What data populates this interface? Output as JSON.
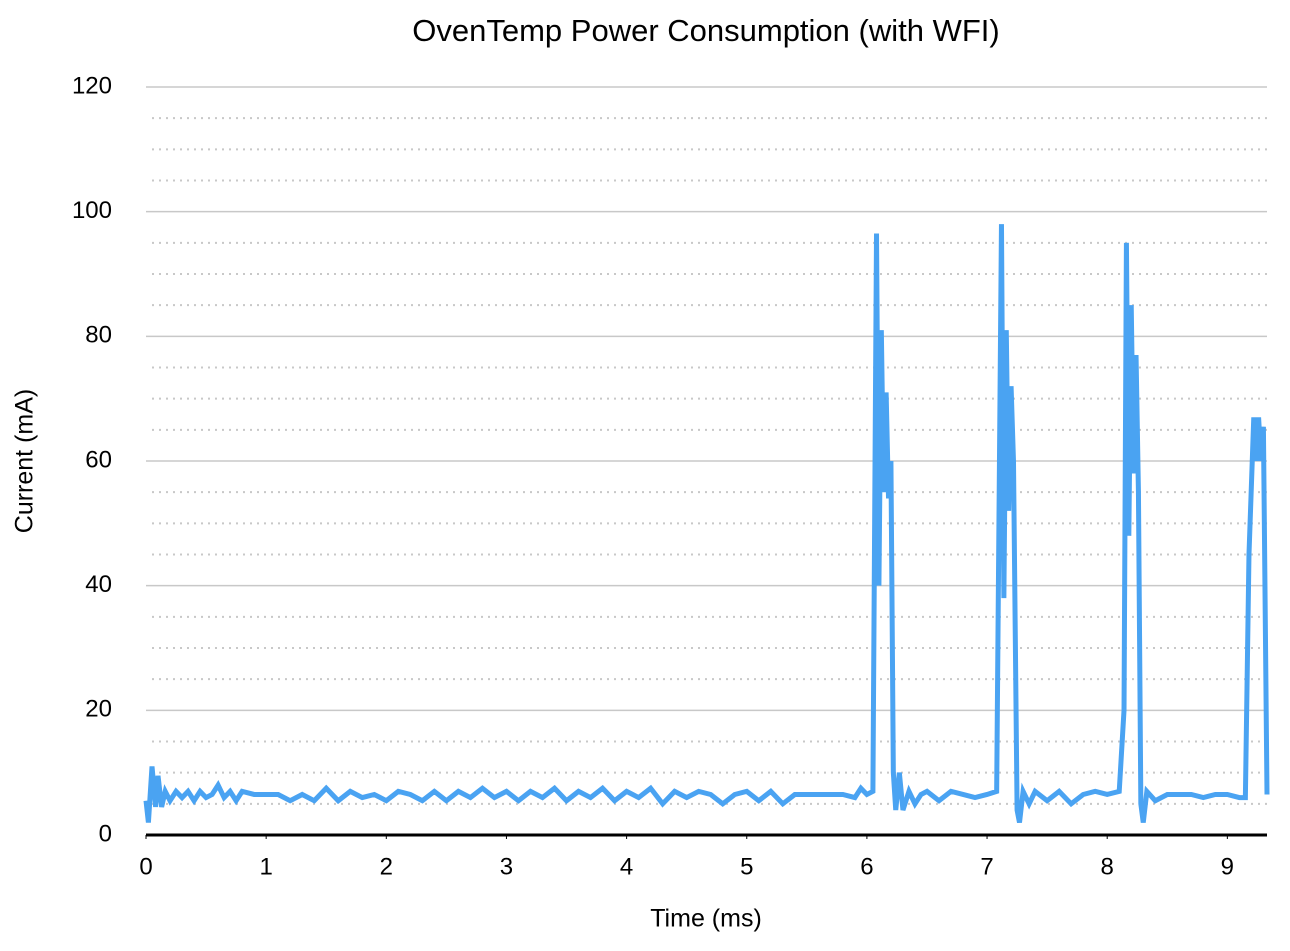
{
  "chart_data": {
    "type": "line",
    "title": "OvenTemp Power Consumption (with WFI)",
    "x_label": "Time (ms)",
    "y_label": "Current (mA)",
    "xlim": [
      0,
      9.33
    ],
    "ylim": [
      0,
      120
    ],
    "xticks": [
      0,
      1,
      2,
      3,
      4,
      5,
      6,
      7,
      8,
      9
    ],
    "yticks": [
      0,
      20,
      40,
      60,
      80,
      100,
      120
    ],
    "y_minor_ticks": [
      5,
      10,
      15,
      25,
      30,
      35,
      45,
      50,
      55,
      65,
      70,
      75,
      85,
      90,
      95,
      105,
      110,
      115
    ],
    "grid": true,
    "x": [
      0,
      0.02,
      0.05,
      0.08,
      0.1,
      0.13,
      0.16,
      0.2,
      0.25,
      0.3,
      0.35,
      0.4,
      0.45,
      0.5,
      0.55,
      0.6,
      0.65,
      0.7,
      0.75,
      0.8,
      0.9,
      1.0,
      1.1,
      1.2,
      1.3,
      1.4,
      1.5,
      1.6,
      1.7,
      1.8,
      1.9,
      2.0,
      2.1,
      2.2,
      2.3,
      2.4,
      2.5,
      2.6,
      2.7,
      2.8,
      2.9,
      3.0,
      3.1,
      3.2,
      3.3,
      3.4,
      3.5,
      3.6,
      3.7,
      3.8,
      3.9,
      4.0,
      4.1,
      4.2,
      4.3,
      4.4,
      4.5,
      4.6,
      4.7,
      4.8,
      4.9,
      5.0,
      5.1,
      5.2,
      5.3,
      5.4,
      5.5,
      5.6,
      5.7,
      5.8,
      5.9,
      5.95,
      6.0,
      6.05,
      6.08,
      6.1,
      6.12,
      6.14,
      6.16,
      6.18,
      6.2,
      6.22,
      6.24,
      6.27,
      6.3,
      6.35,
      6.4,
      6.45,
      6.5,
      6.6,
      6.7,
      6.8,
      6.9,
      7.0,
      7.08,
      7.12,
      7.14,
      7.16,
      7.18,
      7.2,
      7.22,
      7.25,
      7.27,
      7.3,
      7.35,
      7.4,
      7.5,
      7.6,
      7.7,
      7.8,
      7.9,
      8.0,
      8.1,
      8.14,
      8.16,
      8.18,
      8.2,
      8.22,
      8.24,
      8.26,
      8.28,
      8.3,
      8.33,
      8.4,
      8.5,
      8.6,
      8.7,
      8.8,
      8.9,
      9.0,
      9.1,
      9.15,
      9.18,
      9.22,
      9.24,
      9.26,
      9.28,
      9.3,
      9.33
    ],
    "series": [
      {
        "name": "Current",
        "color": "#4aa3f2",
        "values": [
          5.5,
          2,
          11,
          4.5,
          9.5,
          4.5,
          7,
          5.5,
          7,
          6,
          7,
          5.5,
          7,
          6,
          6.5,
          8,
          6,
          7,
          5.5,
          7,
          6.5,
          6.5,
          6.5,
          5.5,
          6.5,
          5.5,
          7.5,
          5.5,
          7,
          6,
          6.5,
          5.5,
          7,
          6.5,
          5.5,
          7,
          5.5,
          7,
          6,
          7.5,
          6,
          7,
          5.5,
          7,
          6,
          7.5,
          5.5,
          7,
          6,
          7.5,
          5.5,
          7,
          6,
          7.5,
          5,
          7,
          6,
          7,
          6.5,
          5,
          6.5,
          7,
          5.5,
          7,
          5,
          6.5,
          6.5,
          6.5,
          6.5,
          6.5,
          6,
          7.5,
          6.5,
          7,
          96.5,
          40,
          81,
          55,
          71,
          54,
          60,
          10,
          4,
          10,
          4,
          7,
          5,
          6.5,
          7,
          5.5,
          7,
          6.5,
          6,
          6.5,
          7,
          98,
          38,
          81,
          52,
          72,
          60,
          4,
          2,
          7,
          5,
          7,
          5.5,
          7,
          5,
          6.5,
          7,
          6.5,
          7,
          20,
          95,
          48,
          85,
          58,
          77,
          55,
          5,
          2,
          7,
          5.5,
          6.5,
          6.5,
          6.5,
          6,
          6.5,
          6.5,
          6,
          6,
          45,
          67,
          60,
          67,
          60,
          65.5,
          6.5
        ]
      }
    ]
  }
}
